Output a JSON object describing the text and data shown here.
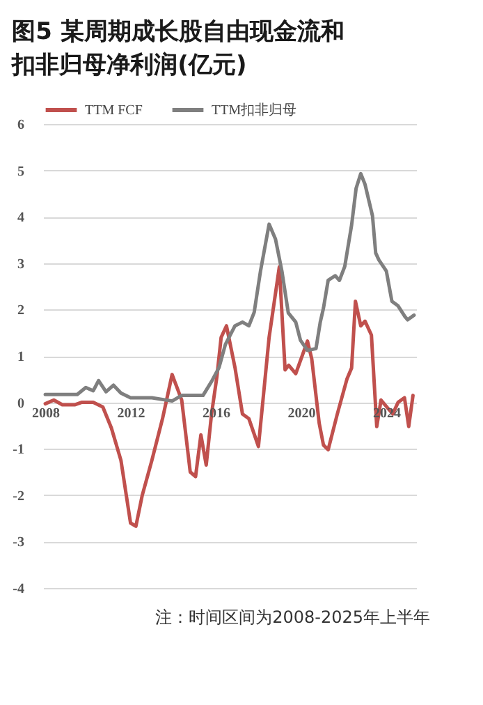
{
  "chart_data": {
    "type": "line",
    "title": "图5 某周期成长股自由现金流和扣非归母净利润(亿元)",
    "annotations": [
      "注：时间区间为2008-2025年上半年"
    ],
    "xlim": [
      2007.9,
      2025.4
    ],
    "xticks": [
      2008,
      2012,
      2016,
      2020,
      2024
    ],
    "ylim": [
      -4,
      6
    ],
    "yticks": [
      -4,
      -3,
      -2,
      -1,
      0,
      1,
      2,
      3,
      4,
      5,
      6
    ],
    "grid": "y",
    "legend": "top left",
    "line_style": "solid",
    "marker": "none",
    "series": [
      {
        "name": "TTM FCF",
        "color": "#c0504d",
        "x": [
          2008.0,
          2008.4,
          2008.8,
          2009.4,
          2009.7,
          2010.25,
          2010.7,
          2011.1,
          2011.55,
          2012.0,
          2012.25,
          2012.55,
          2013.0,
          2013.5,
          2013.95,
          2014.4,
          2014.8,
          2015.05,
          2015.3,
          2015.55,
          2015.8,
          2016.05,
          2016.25,
          2016.5,
          2016.9,
          2017.25,
          2017.55,
          2018.0,
          2018.5,
          2018.98,
          2019.25,
          2019.42,
          2019.75,
          2020.3,
          2020.5,
          2020.85,
          2021.05,
          2021.27,
          2021.7,
          2022.15,
          2022.37,
          2022.55,
          2022.8,
          2023.0,
          2023.3,
          2023.55,
          2023.75,
          2024.3,
          2024.55,
          2024.85,
          2025.05,
          2025.25
        ],
        "values": [
          -0.03,
          0.05,
          -0.05,
          -0.05,
          0,
          0,
          -0.1,
          -0.55,
          -1.25,
          -2.6,
          -2.67,
          -2.0,
          -1.25,
          -0.35,
          0.6,
          0.05,
          -1.5,
          -1.6,
          -0.7,
          -1.35,
          -0.25,
          0.55,
          1.4,
          1.65,
          0.75,
          -0.25,
          -0.35,
          -0.95,
          1.4,
          2.92,
          0.7,
          0.8,
          0.62,
          1.32,
          0.94,
          -0.45,
          -0.92,
          -1.02,
          -0.25,
          0.5,
          0.74,
          2.18,
          1.65,
          1.75,
          1.45,
          -0.52,
          0.05,
          -0.25,
          0.0,
          0.1,
          -0.52,
          0.15
        ]
      },
      {
        "name": "TTM扣非归母",
        "color": "#7f7f7f",
        "x": [
          2008.0,
          2009.5,
          2009.9,
          2010.25,
          2010.5,
          2010.85,
          2011.2,
          2011.55,
          2012.0,
          2013.0,
          2013.95,
          2014.4,
          2015.05,
          2015.4,
          2015.8,
          2016.15,
          2016.45,
          2016.9,
          2017.25,
          2017.55,
          2017.8,
          2018.1,
          2018.5,
          2018.8,
          2019.1,
          2019.4,
          2019.75,
          2019.97,
          2020.3,
          2020.7,
          2020.9,
          2021.05,
          2021.27,
          2021.6,
          2021.8,
          2022.05,
          2022.37,
          2022.58,
          2022.8,
          2023.0,
          2023.35,
          2023.5,
          2023.65,
          2024.0,
          2024.26,
          2024.55,
          2024.87,
          2025.0,
          2025.3
        ],
        "values": [
          0.17,
          0.17,
          0.32,
          0.25,
          0.47,
          0.23,
          0.37,
          0.2,
          0.1,
          0.1,
          0.03,
          0.15,
          0.15,
          0.15,
          0.45,
          0.75,
          1.25,
          1.65,
          1.73,
          1.65,
          1.94,
          2.84,
          3.84,
          3.52,
          2.83,
          1.93,
          1.73,
          1.34,
          1.12,
          1.16,
          1.73,
          2.03,
          2.63,
          2.73,
          2.63,
          2.93,
          3.82,
          4.61,
          4.93,
          4.7,
          4.02,
          3.22,
          3.07,
          2.83,
          2.18,
          2.08,
          1.85,
          1.78,
          1.88
        ]
      }
    ]
  }
}
